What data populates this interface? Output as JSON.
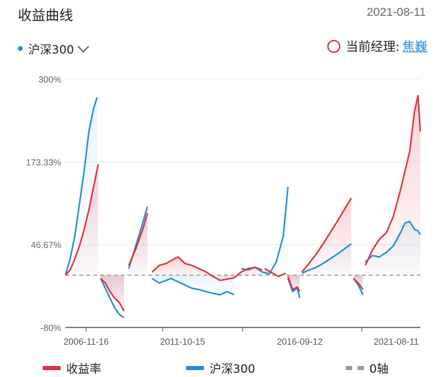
{
  "header": {
    "title": "收益曲线",
    "date": "2021-08-11",
    "index_name": "沪深300",
    "manager_label": "当前经理:",
    "manager_name": "焦巍"
  },
  "colors": {
    "fund": "#e0313b",
    "index": "#1f8fd8",
    "zero": "#999999"
  },
  "chart_data": {
    "type": "line",
    "ylim": [
      -80,
      300
    ],
    "y_ticks": [
      "300%",
      "173.33%",
      "46.67%",
      "-80%"
    ],
    "x_ticks": [
      "2006-11-16",
      "2011-10-15",
      "2016-09-12",
      "2021-08-11"
    ],
    "zero_line": 0,
    "series": [
      {
        "name": "收益率",
        "color": "#e0313b",
        "segments": [
          [
            [
              2006.5,
              0
            ],
            [
              2006.7,
              8
            ],
            [
              2006.9,
              25
            ],
            [
              2007.1,
              45
            ],
            [
              2007.3,
              70
            ],
            [
              2007.5,
              100
            ],
            [
              2007.7,
              135
            ],
            [
              2007.9,
              170
            ]
          ],
          [
            [
              2008.0,
              -5
            ],
            [
              2008.2,
              -12
            ],
            [
              2008.4,
              -25
            ],
            [
              2008.6,
              -35
            ],
            [
              2008.8,
              -42
            ],
            [
              2009.0,
              -55
            ]
          ],
          [
            [
              2009.2,
              15
            ],
            [
              2009.5,
              40
            ],
            [
              2009.8,
              70
            ],
            [
              2010.0,
              95
            ]
          ],
          [
            [
              2010.2,
              5
            ],
            [
              2010.5,
              15
            ],
            [
              2010.8,
              18
            ],
            [
              2011.0,
              22
            ],
            [
              2011.3,
              28
            ],
            [
              2011.6,
              18
            ],
            [
              2011.9,
              15
            ],
            [
              2012.2,
              10
            ],
            [
              2012.5,
              5
            ],
            [
              2012.8,
              -2
            ],
            [
              2013.1,
              -8
            ],
            [
              2013.4,
              -6
            ],
            [
              2013.7,
              -4
            ],
            [
              2014.0,
              5
            ],
            [
              2014.3,
              10
            ],
            [
              2014.6,
              12
            ],
            [
              2014.9,
              8
            ]
          ],
          [
            [
              2015.0,
              10
            ],
            [
              2015.2,
              6
            ],
            [
              2015.4,
              2
            ],
            [
              2015.6,
              -2
            ],
            [
              2015.9,
              3
            ]
          ],
          [
            [
              2016.0,
              -2
            ],
            [
              2016.2,
              -22
            ],
            [
              2016.4,
              -18
            ],
            [
              2016.5,
              -25
            ]
          ],
          [
            [
              2016.6,
              5
            ],
            [
              2016.9,
              18
            ],
            [
              2017.2,
              32
            ],
            [
              2017.5,
              48
            ],
            [
              2017.8,
              65
            ],
            [
              2018.1,
              82
            ],
            [
              2018.4,
              100
            ],
            [
              2018.7,
              118
            ]
          ],
          [
            [
              2018.8,
              -5
            ],
            [
              2019.0,
              -12
            ],
            [
              2019.2,
              -22
            ]
          ],
          [
            [
              2019.3,
              15
            ],
            [
              2019.6,
              38
            ],
            [
              2019.9,
              55
            ],
            [
              2020.2,
              65
            ],
            [
              2020.5,
              90
            ],
            [
              2020.8,
              130
            ],
            [
              2021.0,
              160
            ],
            [
              2021.2,
              190
            ],
            [
              2021.4,
              250
            ],
            [
              2021.55,
              275
            ],
            [
              2021.65,
              220
            ]
          ]
        ]
      },
      {
        "name": "沪深300",
        "color": "#1f8fd8",
        "segments": [
          [
            [
              2006.5,
              0
            ],
            [
              2006.7,
              25
            ],
            [
              2006.9,
              60
            ],
            [
              2007.1,
              110
            ],
            [
              2007.3,
              160
            ],
            [
              2007.5,
              220
            ],
            [
              2007.7,
              255
            ],
            [
              2007.85,
              272
            ]
          ],
          [
            [
              2008.0,
              -5
            ],
            [
              2008.2,
              -20
            ],
            [
              2008.4,
              -35
            ],
            [
              2008.6,
              -50
            ],
            [
              2008.8,
              -60
            ],
            [
              2009.0,
              -65
            ]
          ],
          [
            [
              2009.2,
              10
            ],
            [
              2009.5,
              45
            ],
            [
              2009.8,
              80
            ],
            [
              2010.0,
              105
            ]
          ],
          [
            [
              2010.2,
              -5
            ],
            [
              2010.5,
              -12
            ],
            [
              2010.8,
              -8
            ],
            [
              2011.0,
              -5
            ],
            [
              2011.3,
              -10
            ],
            [
              2011.6,
              -15
            ],
            [
              2011.9,
              -20
            ],
            [
              2012.2,
              -22
            ],
            [
              2012.5,
              -25
            ],
            [
              2012.8,
              -28
            ],
            [
              2013.1,
              -30
            ],
            [
              2013.4,
              -25
            ],
            [
              2013.7,
              -30
            ]
          ],
          [
            [
              2014.0,
              10
            ],
            [
              2014.3,
              8
            ],
            [
              2014.6,
              12
            ],
            [
              2014.9,
              5
            ],
            [
              2015.2,
              2
            ],
            [
              2015.5,
              20
            ],
            [
              2015.8,
              60
            ],
            [
              2016.0,
              135
            ]
          ],
          [
            [
              2016.0,
              -5
            ],
            [
              2016.2,
              -25
            ],
            [
              2016.4,
              -20
            ],
            [
              2016.5,
              -35
            ]
          ],
          [
            [
              2016.6,
              3
            ],
            [
              2016.9,
              8
            ],
            [
              2017.2,
              12
            ],
            [
              2017.5,
              18
            ],
            [
              2017.8,
              25
            ],
            [
              2018.1,
              32
            ],
            [
              2018.4,
              40
            ],
            [
              2018.7,
              48
            ]
          ],
          [
            [
              2018.8,
              -5
            ],
            [
              2019.0,
              -15
            ],
            [
              2019.2,
              -30
            ]
          ],
          [
            [
              2019.3,
              20
            ],
            [
              2019.6,
              30
            ],
            [
              2019.9,
              28
            ],
            [
              2020.2,
              35
            ],
            [
              2020.5,
              45
            ],
            [
              2020.8,
              65
            ],
            [
              2021.0,
              80
            ],
            [
              2021.2,
              82
            ],
            [
              2021.4,
              70
            ],
            [
              2021.55,
              68
            ],
            [
              2021.65,
              62
            ]
          ]
        ]
      },
      {
        "name": "0轴",
        "color": "#999999",
        "segments": []
      }
    ]
  }
}
